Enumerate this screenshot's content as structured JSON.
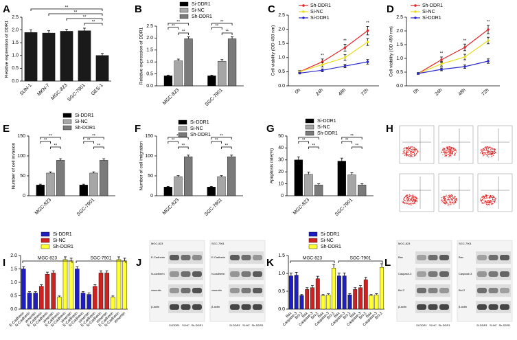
{
  "chart_data": [
    {
      "panel": "A",
      "type": "bar",
      "ylabel": "Relative expression of DDR1",
      "categories": [
        "SUN-1",
        "MKN-7",
        "MGC-823",
        "SGC-7901",
        "GES-1"
      ],
      "values": [
        1.9,
        1.88,
        1.95,
        1.97,
        1.0
      ],
      "errors": [
        0.1,
        0.09,
        0.08,
        0.1,
        0.08
      ],
      "color": "#1a1a1a",
      "ylim": [
        0,
        2.5
      ],
      "yticks": [
        {
          "value": 0,
          "label": "0.0"
        },
        0.5,
        {
          "value": 1,
          "label": "1.0"
        },
        1.5,
        {
          "value": 2,
          "label": "2.0"
        },
        2.5
      ],
      "annotations": [
        "**",
        "**",
        "**",
        "**"
      ]
    },
    {
      "panel": "B",
      "type": "bar",
      "ylabel": "Relative expression of DDR1",
      "categories": [
        "MGC-823",
        "SGC-7901"
      ],
      "series": [
        {
          "name": "Si-DDR1",
          "color": "#000000",
          "values": [
            0.42,
            0.42
          ],
          "errors": [
            0.03,
            0.03
          ]
        },
        {
          "name": "Si-NC",
          "color": "#a6a6a6",
          "values": [
            1.05,
            1.03
          ],
          "errors": [
            0.07,
            0.07
          ]
        },
        {
          "name": "Sh-DDR1",
          "color": "#7a7a7a",
          "values": [
            1.97,
            1.97
          ],
          "errors": [
            0.08,
            0.08
          ]
        }
      ],
      "ylim": [
        0,
        2.5
      ],
      "yticks": [
        {
          "value": 0,
          "label": "0.0"
        },
        0.5,
        {
          "value": 1,
          "label": "1.0"
        },
        1.5,
        {
          "value": 2,
          "label": "2.0"
        },
        2.5
      ],
      "annotations": [
        "**",
        "**",
        "**",
        "**",
        "**",
        "**"
      ]
    },
    {
      "panel": "C",
      "type": "line",
      "ylabel": "Cell viability (OD 450 nm)",
      "categories": [
        "0h",
        "24h",
        "48h",
        "72h"
      ],
      "series": [
        {
          "name": "Sh-DDR1",
          "color": "#e0262a",
          "values": [
            0.5,
            0.85,
            1.35,
            1.95
          ],
          "errors": [
            0.04,
            0.1,
            0.12,
            0.15
          ]
        },
        {
          "name": "Si-NC",
          "color": "#e8dc20",
          "values": [
            0.5,
            0.75,
            1.0,
            1.55
          ],
          "errors": [
            0.04,
            0.08,
            0.1,
            0.12
          ]
        },
        {
          "name": "Si-DDR1",
          "color": "#2a2ac8",
          "values": [
            0.45,
            0.55,
            0.7,
            0.85
          ],
          "errors": [
            0.03,
            0.05,
            0.06,
            0.08
          ]
        }
      ],
      "ylim": [
        0,
        2.5
      ],
      "yticks": [
        {
          "value": 0,
          "label": "0.0"
        },
        0.5,
        {
          "value": 1,
          "label": "1.0"
        },
        1.5,
        {
          "value": 2,
          "label": "2.0"
        },
        2.5
      ],
      "annotations": [
        "**",
        "**",
        "**"
      ]
    },
    {
      "panel": "D",
      "type": "line",
      "ylabel": "Cell viability (OD 450 nm)",
      "categories": [
        "0h",
        "24h",
        "48h",
        "72h"
      ],
      "series": [
        {
          "name": "Sh-DDR1",
          "color": "#e0262a",
          "values": [
            0.45,
            0.95,
            1.4,
            2.05
          ],
          "errors": [
            0.03,
            0.1,
            0.12,
            0.15
          ]
        },
        {
          "name": "Si-NC",
          "color": "#e8dc20",
          "values": [
            0.45,
            0.8,
            1.05,
            1.65
          ],
          "errors": [
            0.03,
            0.08,
            0.1,
            0.12
          ]
        },
        {
          "name": "Si-DDR1",
          "color": "#2a2ac8",
          "values": [
            0.45,
            0.6,
            0.7,
            0.9
          ],
          "errors": [
            0.03,
            0.05,
            0.06,
            0.08
          ]
        }
      ],
      "ylim": [
        0,
        2.5
      ],
      "yticks": [
        {
          "value": 0,
          "label": "0.0"
        },
        0.5,
        {
          "value": 1,
          "label": "1.0"
        },
        1.5,
        {
          "value": 2,
          "label": "2.0"
        },
        2.5
      ],
      "annotations": [
        "**",
        "**",
        "**"
      ]
    },
    {
      "panel": "E",
      "type": "bar",
      "ylabel": "Number of cell invasion",
      "categories": [
        "MGC-823",
        "SGC-7901"
      ],
      "series": [
        {
          "name": "Si-DDR1",
          "color": "#000000",
          "values": [
            27,
            27
          ],
          "errors": [
            2,
            2
          ]
        },
        {
          "name": "Si-NC",
          "color": "#a6a6a6",
          "values": [
            57,
            57
          ],
          "errors": [
            3,
            3
          ]
        },
        {
          "name": "Sh-DDR1",
          "color": "#7a7a7a",
          "values": [
            89,
            89
          ],
          "errors": [
            4,
            4
          ]
        }
      ],
      "ylim": [
        0,
        150
      ],
      "yticks": [
        0,
        50,
        100,
        150
      ],
      "annotations": [
        "**",
        "**",
        "**",
        "**",
        "**",
        "**"
      ]
    },
    {
      "panel": "F",
      "type": "bar",
      "ylabel": "Number of cell imigration",
      "categories": [
        "MGC-823",
        "SGC-7901"
      ],
      "series": [
        {
          "name": "Si-DDR1",
          "color": "#000000",
          "values": [
            22,
            22
          ],
          "errors": [
            1.5,
            1.5
          ]
        },
        {
          "name": "Si-NC",
          "color": "#a6a6a6",
          "values": [
            48,
            48
          ],
          "errors": [
            2.5,
            2.5
          ]
        },
        {
          "name": "Sh-DDR1",
          "color": "#7a7a7a",
          "values": [
            98,
            98
          ],
          "errors": [
            4,
            4
          ]
        }
      ],
      "ylim": [
        0,
        150
      ],
      "yticks": [
        0,
        50,
        100,
        150
      ],
      "annotations": [
        "**",
        "**",
        "**",
        "**",
        "**",
        "**"
      ]
    },
    {
      "panel": "G",
      "type": "bar",
      "ylabel": "Apoptosis rate(%)",
      "categories": [
        "MGC-823",
        "SGC-7901"
      ],
      "series": [
        {
          "name": "Si-DDR1",
          "color": "#000000",
          "values": [
            30,
            29
          ],
          "errors": [
            2.5,
            2.5
          ]
        },
        {
          "name": "Si-NC",
          "color": "#a6a6a6",
          "values": [
            18,
            17.5
          ],
          "errors": [
            1.8,
            1.8
          ]
        },
        {
          "name": "Sh-DDR1",
          "color": "#7a7a7a",
          "values": [
            9,
            9
          ],
          "errors": [
            1,
            1
          ]
        }
      ],
      "ylim": [
        0,
        50
      ],
      "yticks": [
        0,
        10,
        20,
        30,
        40,
        50
      ],
      "annotations": [
        "**",
        "**",
        "**",
        "**",
        "**",
        "**"
      ]
    },
    {
      "panel": "I",
      "type": "bar",
      "group_labels": [
        "MGC-823",
        "SGC-7901"
      ],
      "categories": [
        "E-Cadherin",
        "N-Cadherin",
        "vimentin",
        "E-Cadherin",
        "N-Cadherin",
        "vimentin",
        "E-Cadherin",
        "N-Cadherin",
        "vimentin",
        "E-Cadherin",
        "N-Cadherin",
        "vimentin",
        "E-Cadherin",
        "N-Cadherin",
        "vimentin",
        "E-Cadherin",
        "N-Cadherin",
        "vimentin"
      ],
      "series": [
        {
          "name": "Si-DDR1",
          "color": "#1f1fbf",
          "values": [
            1.5,
            0.6,
            0.6,
            null,
            null,
            null,
            null,
            null,
            null,
            1.5,
            0.6,
            0.55,
            null,
            null,
            null,
            null,
            null,
            null
          ],
          "errors": [
            0.08,
            0.05,
            0.05,
            null,
            null,
            null,
            null,
            null,
            null,
            0.08,
            0.05,
            0.05,
            null,
            null,
            null,
            null,
            null,
            null
          ]
        },
        {
          "name": "Si-NC",
          "color": "#cc2222",
          "values": [
            null,
            null,
            null,
            0.85,
            1.3,
            1.35,
            null,
            null,
            null,
            null,
            null,
            null,
            0.85,
            1.35,
            1.35,
            null,
            null,
            null
          ],
          "errors": [
            null,
            null,
            null,
            0.06,
            0.08,
            0.08,
            null,
            null,
            null,
            null,
            null,
            null,
            0.06,
            0.08,
            0.08,
            null,
            null,
            null
          ]
        },
        {
          "name": "Sh-DDR1",
          "color": "#ffff33",
          "values": [
            null,
            null,
            null,
            null,
            null,
            null,
            0.45,
            1.85,
            1.8,
            null,
            null,
            null,
            null,
            null,
            null,
            0.45,
            1.85,
            1.8
          ],
          "errors": [
            null,
            null,
            null,
            null,
            null,
            null,
            0.04,
            0.1,
            0.1,
            null,
            null,
            null,
            null,
            null,
            null,
            0.04,
            0.1,
            0.1
          ]
        }
      ],
      "ylim": [
        0,
        2
      ],
      "yticks": [
        {
          "value": 0,
          "label": "0.0"
        },
        0.5,
        {
          "value": 1,
          "label": "1.0"
        },
        1.5,
        {
          "value": 2,
          "label": "2.0"
        }
      ]
    },
    {
      "panel": "K",
      "type": "bar",
      "group_labels": [
        "MGC-823",
        "SGC-7901"
      ],
      "categories": [
        "Bax",
        "Caspase-3",
        "Bcl-2",
        "Bax",
        "Caspase-3",
        "Bcl-2",
        "Bax",
        "Caspase-3",
        "Bcl-2",
        "Bax",
        "Caspase-3",
        "Bcl-2",
        "Bax",
        "Caspase-3",
        "Bcl-2",
        "Bax",
        "Caspase-3",
        "Bcl-2"
      ],
      "series": [
        {
          "name": "Si-DDR1",
          "color": "#1f1fbf",
          "values": [
            0.93,
            0.95,
            0.38,
            null,
            null,
            null,
            null,
            null,
            null,
            0.93,
            0.93,
            0.4,
            null,
            null,
            null,
            null,
            null,
            null
          ],
          "errors": [
            0.08,
            0.08,
            0.03,
            null,
            null,
            null,
            null,
            null,
            null,
            0.08,
            0.08,
            0.03,
            null,
            null,
            null,
            null,
            null,
            null
          ]
        },
        {
          "name": "Si-NC",
          "color": "#cc2222",
          "values": [
            null,
            null,
            null,
            0.55,
            0.6,
            0.85,
            null,
            null,
            null,
            null,
            null,
            null,
            0.55,
            0.6,
            0.82,
            null,
            null,
            null
          ],
          "errors": [
            null,
            null,
            null,
            0.05,
            0.06,
            0.07,
            null,
            null,
            null,
            null,
            null,
            null,
            0.05,
            0.06,
            0.07,
            null,
            null,
            null
          ]
        },
        {
          "name": "Sh-DDR1",
          "color": "#ffff33",
          "values": [
            null,
            null,
            null,
            null,
            null,
            null,
            0.38,
            0.4,
            1.15,
            null,
            null,
            null,
            null,
            null,
            null,
            0.38,
            0.4,
            1.17
          ],
          "errors": [
            null,
            null,
            null,
            null,
            null,
            null,
            0.03,
            0.03,
            0.1,
            null,
            null,
            null,
            null,
            null,
            null,
            0.03,
            0.03,
            0.1
          ]
        }
      ],
      "ylim": [
        0,
        1.5
      ],
      "yticks": [
        {
          "value": 0,
          "label": "0.0"
        },
        0.5,
        {
          "value": 1,
          "label": "1.0"
        },
        1.5
      ]
    }
  ],
  "image_panels": [
    {
      "panel": "H"
    },
    {
      "panel": "J",
      "blocks": [
        {
          "title": "MGC-823",
          "rows": [
            "E-Cadherin",
            "N-cadherin",
            "vimentin",
            "β-actin"
          ],
          "lanes": [
            "Si-DDR1",
            "Si-NC",
            "Sh-DDR1"
          ]
        },
        {
          "title": "SGC-7901",
          "rows": [
            "E-Cadherin",
            "N-cadherin",
            "vimentin",
            "β-actin"
          ],
          "lanes": [
            "Si-DDR1",
            "Si-NC",
            "Sh-DDR1"
          ]
        }
      ]
    },
    {
      "panel": "L",
      "blocks": [
        {
          "title": "MGC-823",
          "rows": [
            "Bax",
            "Caspase-3",
            "Bcl-2",
            "β-actin"
          ],
          "lanes": [
            "Si-DDR1",
            "Si-NC",
            "Sh-DDR1"
          ]
        },
        {
          "title": "SGC-7901",
          "rows": [
            "Bax",
            "Caspase-3",
            "Bcl-2",
            "β-actin"
          ],
          "lanes": [
            "Si-DDR1",
            "Si-NC",
            "Sh-DDR1"
          ]
        }
      ]
    }
  ]
}
